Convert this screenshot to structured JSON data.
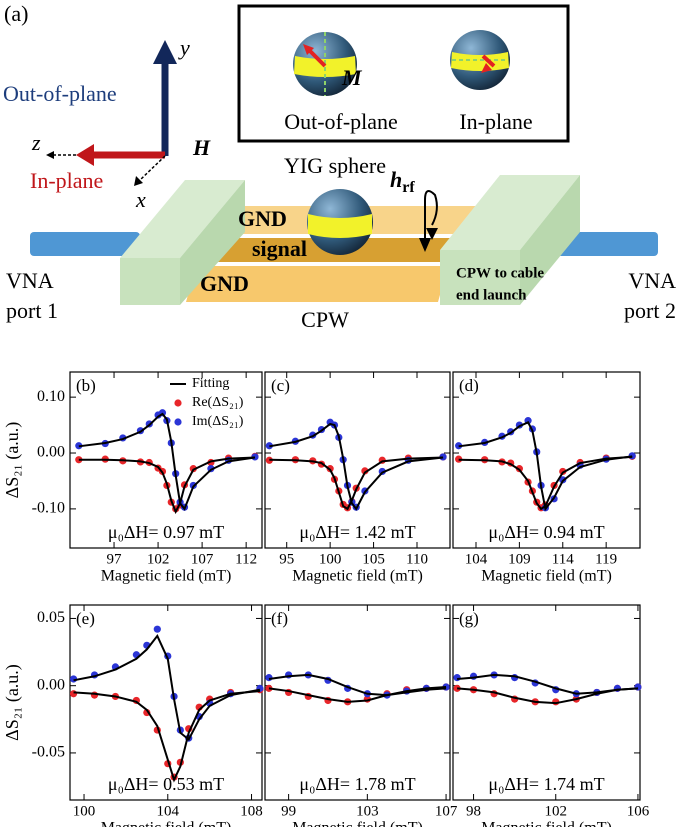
{
  "diagram": {
    "panel_label": "(a)",
    "axis_y": "y",
    "axis_z": "z",
    "axis_x": "x",
    "field": "H",
    "out_of_plane": "Out-of-plane",
    "in_plane": "In-plane",
    "inset_left": "Out-of-plane",
    "inset_right": "In-plane",
    "magnetization": "M",
    "sphere": "YIG sphere",
    "h_rf": {
      "base": "h",
      "sub": "rf"
    },
    "gnd_top": "GND",
    "signal": "signal",
    "gnd_bottom": "GND",
    "launch": [
      "CPW to cable",
      "end launch"
    ],
    "port1": [
      "VNA",
      "port 1"
    ],
    "port2": [
      "VNA",
      "port 2"
    ],
    "cpw": "CPW"
  },
  "chart_data": [
    {
      "type": "line",
      "label": "(b)",
      "annotation": "μ₀ΔH= 0.97 mT",
      "xlabel": "Magnetic field (mT)",
      "ylabel": "ΔS₂₁ (a.u.)",
      "xlim": [
        92,
        113.8
      ],
      "xticks": [
        97,
        102,
        107,
        112
      ],
      "ylim": [
        -0.17,
        0.145
      ],
      "yticks": [
        {
          "value": 0.1,
          "label": "0.10"
        },
        {
          "value": 0,
          "label": "0.00"
        },
        {
          "value": -0.1,
          "label": "-0.10"
        }
      ],
      "legend": "upper right",
      "x": [
        93,
        96,
        98,
        100,
        101,
        102,
        102.5,
        103,
        103.5,
        104,
        104.5,
        105,
        106,
        108,
        110,
        113
      ],
      "series": [
        {
          "name": "Re(ΔS₂₁)",
          "color": "#e8262a",
          "mode": "markers",
          "values": [
            -0.012,
            -0.011,
            -0.014,
            -0.016,
            -0.017,
            -0.027,
            -0.033,
            -0.058,
            -0.088,
            -0.1,
            -0.093,
            -0.057,
            -0.028,
            -0.017,
            -0.009,
            -0.006
          ]
        },
        {
          "name": "Im(ΔS₂₁)",
          "color": "#2b35d6",
          "mode": "markers",
          "values": [
            0.013,
            0.017,
            0.027,
            0.04,
            0.052,
            0.068,
            0.072,
            0.058,
            0.018,
            -0.037,
            -0.088,
            -0.097,
            -0.058,
            -0.028,
            -0.013,
            -0.007
          ]
        },
        {
          "name": "Fitting",
          "color": "#000000",
          "mode": "lines",
          "values": [
            -0.012,
            -0.012,
            -0.013,
            -0.015,
            -0.018,
            -0.025,
            -0.035,
            -0.055,
            -0.085,
            -0.105,
            -0.09,
            -0.06,
            -0.03,
            -0.015,
            -0.01,
            -0.008
          ]
        },
        {
          "color": "#000000",
          "mode": "lines",
          "values": [
            0.012,
            0.018,
            0.025,
            0.038,
            0.05,
            0.065,
            0.07,
            0.06,
            0.02,
            -0.04,
            -0.09,
            -0.1,
            -0.06,
            -0.03,
            -0.015,
            -0.008
          ]
        }
      ]
    },
    {
      "type": "line",
      "label": "(c)",
      "annotation": "μ₀ΔH= 1.42 mT",
      "xlabel": "Magnetic field (mT)",
      "xlim": [
        92.5,
        113.8
      ],
      "xticks": [
        95,
        100,
        105,
        110
      ],
      "ylim": [
        -0.17,
        0.145
      ],
      "yticks": [
        0.1,
        0,
        -0.1
      ],
      "ytick_labels": false,
      "x": [
        93,
        96,
        98,
        99,
        100,
        100.5,
        101,
        101.5,
        102,
        102.5,
        103,
        104,
        106,
        109,
        113
      ],
      "series": [
        {
          "color": "#e8262a",
          "mode": "markers",
          "values": [
            -0.013,
            -0.012,
            -0.014,
            -0.02,
            -0.028,
            -0.047,
            -0.068,
            -0.092,
            -0.098,
            -0.087,
            -0.063,
            -0.032,
            -0.013,
            -0.009,
            -0.007
          ]
        },
        {
          "color": "#2b35d6",
          "mode": "markers",
          "values": [
            0.013,
            0.021,
            0.032,
            0.042,
            0.055,
            0.05,
            0.028,
            -0.012,
            -0.058,
            -0.088,
            -0.097,
            -0.068,
            -0.033,
            -0.013,
            -0.007
          ]
        },
        {
          "color": "#000000",
          "mode": "lines",
          "values": [
            -0.012,
            -0.013,
            -0.015,
            -0.018,
            -0.03,
            -0.045,
            -0.07,
            -0.095,
            -0.1,
            -0.085,
            -0.065,
            -0.035,
            -0.015,
            -0.01,
            -0.008
          ]
        },
        {
          "color": "#000000",
          "mode": "lines",
          "values": [
            0.012,
            0.02,
            0.03,
            0.04,
            0.052,
            0.05,
            0.03,
            -0.01,
            -0.06,
            -0.09,
            -0.1,
            -0.07,
            -0.035,
            -0.015,
            -0.008
          ]
        }
      ]
    },
    {
      "type": "line",
      "label": "(d)",
      "annotation": "μ₀ΔH= 0.94 mT",
      "xlabel": "Magnetic field (mT)",
      "xlim": [
        101.35,
        122.9
      ],
      "xticks": [
        104,
        109,
        114,
        119
      ],
      "ylim": [
        -0.17,
        0.145
      ],
      "yticks": [
        0.1,
        0,
        -0.1
      ],
      "ytick_labels": false,
      "x": [
        102,
        105,
        107,
        108,
        109,
        110,
        110.5,
        111,
        111.5,
        112,
        113,
        114,
        116,
        119,
        122
      ],
      "series": [
        {
          "color": "#e8262a",
          "mode": "markers",
          "values": [
            -0.011,
            -0.012,
            -0.016,
            -0.018,
            -0.028,
            -0.052,
            -0.068,
            -0.088,
            -0.098,
            -0.093,
            -0.058,
            -0.033,
            -0.017,
            -0.009,
            -0.006
          ]
        },
        {
          "color": "#2b35d6",
          "mode": "markers",
          "values": [
            0.013,
            0.019,
            0.03,
            0.038,
            0.05,
            0.058,
            0.043,
            0.002,
            -0.058,
            -0.098,
            -0.082,
            -0.048,
            -0.022,
            -0.011,
            -0.005
          ]
        },
        {
          "color": "#000000",
          "mode": "lines",
          "values": [
            -0.012,
            -0.013,
            -0.015,
            -0.02,
            -0.03,
            -0.05,
            -0.07,
            -0.09,
            -0.1,
            -0.095,
            -0.06,
            -0.035,
            -0.018,
            -0.01,
            -0.007
          ]
        },
        {
          "color": "#000000",
          "mode": "lines",
          "values": [
            0.012,
            0.018,
            0.028,
            0.036,
            0.048,
            0.055,
            0.04,
            0.0,
            -0.06,
            -0.1,
            -0.08,
            -0.05,
            -0.025,
            -0.012,
            -0.006
          ]
        }
      ]
    },
    {
      "type": "line",
      "label": "(e)",
      "annotation": "μ₀ΔH= 0.53 mT",
      "xlabel": "Magnetic field (mT)",
      "ylabel": "ΔS₂₁ (a.u.)",
      "xlim": [
        99.33,
        108.5
      ],
      "xticks": [
        100,
        104,
        108
      ],
      "ylim": [
        -0.085,
        0.06
      ],
      "yticks": [
        {
          "value": 0.05,
          "label": "0.05"
        },
        {
          "value": 0,
          "label": "0.00"
        },
        {
          "value": -0.05,
          "label": "-0.05"
        }
      ],
      "x": [
        99.5,
        100.5,
        101.5,
        102.5,
        103,
        103.5,
        104,
        104.3,
        104.6,
        105,
        105.5,
        106,
        107,
        108.4
      ],
      "series": [
        {
          "color": "#e8262a",
          "mode": "markers",
          "values": [
            -0.006,
            -0.007,
            -0.008,
            -0.011,
            -0.02,
            -0.033,
            -0.058,
            -0.068,
            -0.057,
            -0.032,
            -0.016,
            -0.01,
            -0.005,
            -0.003
          ]
        },
        {
          "color": "#2b35d6",
          "mode": "markers",
          "values": [
            0.005,
            0.008,
            0.014,
            0.023,
            0.03,
            0.042,
            0.022,
            -0.008,
            -0.033,
            -0.039,
            -0.023,
            -0.013,
            -0.006,
            -0.002
          ]
        },
        {
          "color": "#000000",
          "mode": "lines",
          "values": [
            -0.005,
            -0.006,
            -0.008,
            -0.012,
            -0.018,
            -0.03,
            -0.055,
            -0.07,
            -0.06,
            -0.035,
            -0.018,
            -0.011,
            -0.006,
            -0.004
          ]
        },
        {
          "color": "#000000",
          "mode": "lines",
          "values": [
            0.004,
            0.007,
            0.012,
            0.02,
            0.027,
            0.037,
            0.02,
            -0.01,
            -0.035,
            -0.04,
            -0.025,
            -0.015,
            -0.007,
            -0.003
          ]
        }
      ]
    },
    {
      "type": "line",
      "label": "(f)",
      "annotation": "μ₀ΔH= 1.78 mT",
      "xlabel": "Magnetic field (mT)",
      "xlim": [
        97.8,
        107.2
      ],
      "xticks": [
        99,
        103,
        107
      ],
      "ylim": [
        -0.085,
        0.06
      ],
      "yticks": [
        0.05,
        0,
        -0.05
      ],
      "ytick_labels": false,
      "x": [
        98,
        99,
        100,
        101,
        102,
        103,
        104,
        105,
        106,
        107
      ],
      "series": [
        {
          "color": "#e8262a",
          "mode": "markers",
          "values": [
            -0.002,
            -0.005,
            -0.008,
            -0.011,
            -0.012,
            -0.01,
            -0.006,
            -0.003,
            -0.002,
            -0.001
          ]
        },
        {
          "color": "#2b35d6",
          "mode": "markers",
          "values": [
            0.006,
            0.008,
            0.008,
            0.004,
            -0.002,
            -0.006,
            -0.007,
            -0.004,
            -0.002,
            -0.001
          ]
        },
        {
          "color": "#000000",
          "mode": "lines",
          "values": [
            -0.002,
            -0.004,
            -0.007,
            -0.01,
            -0.012,
            -0.011,
            -0.007,
            -0.004,
            -0.002,
            -0.001
          ]
        },
        {
          "color": "#000000",
          "mode": "lines",
          "values": [
            0.005,
            0.007,
            0.008,
            0.005,
            -0.001,
            -0.006,
            -0.007,
            -0.005,
            -0.003,
            -0.002
          ]
        }
      ]
    },
    {
      "type": "line",
      "label": "(g)",
      "annotation": "μ₀ΔH= 1.74 mT",
      "xlabel": "Magnetic field (mT)",
      "xlim": [
        97,
        106.1
      ],
      "xticks": [
        98,
        102,
        106
      ],
      "ylim": [
        -0.085,
        0.06
      ],
      "yticks": [
        0.05,
        0,
        -0.05
      ],
      "ytick_labels": false,
      "x": [
        97.2,
        98,
        99,
        100,
        101,
        102,
        103,
        104,
        105,
        106
      ],
      "series": [
        {
          "color": "#e8262a",
          "mode": "markers",
          "values": [
            -0.002,
            -0.003,
            -0.006,
            -0.01,
            -0.012,
            -0.012,
            -0.01,
            -0.005,
            -0.002,
            -0.001
          ]
        },
        {
          "color": "#2b35d6",
          "mode": "markers",
          "values": [
            0.006,
            0.007,
            0.008,
            0.006,
            0.002,
            -0.003,
            -0.006,
            -0.005,
            -0.002,
            -0.001
          ]
        },
        {
          "color": "#000000",
          "mode": "lines",
          "values": [
            -0.002,
            -0.003,
            -0.005,
            -0.009,
            -0.012,
            -0.013,
            -0.01,
            -0.006,
            -0.003,
            -0.002
          ]
        },
        {
          "color": "#000000",
          "mode": "lines",
          "values": [
            0.005,
            0.006,
            0.008,
            0.007,
            0.003,
            -0.002,
            -0.006,
            -0.005,
            -0.003,
            -0.002
          ]
        }
      ]
    }
  ]
}
